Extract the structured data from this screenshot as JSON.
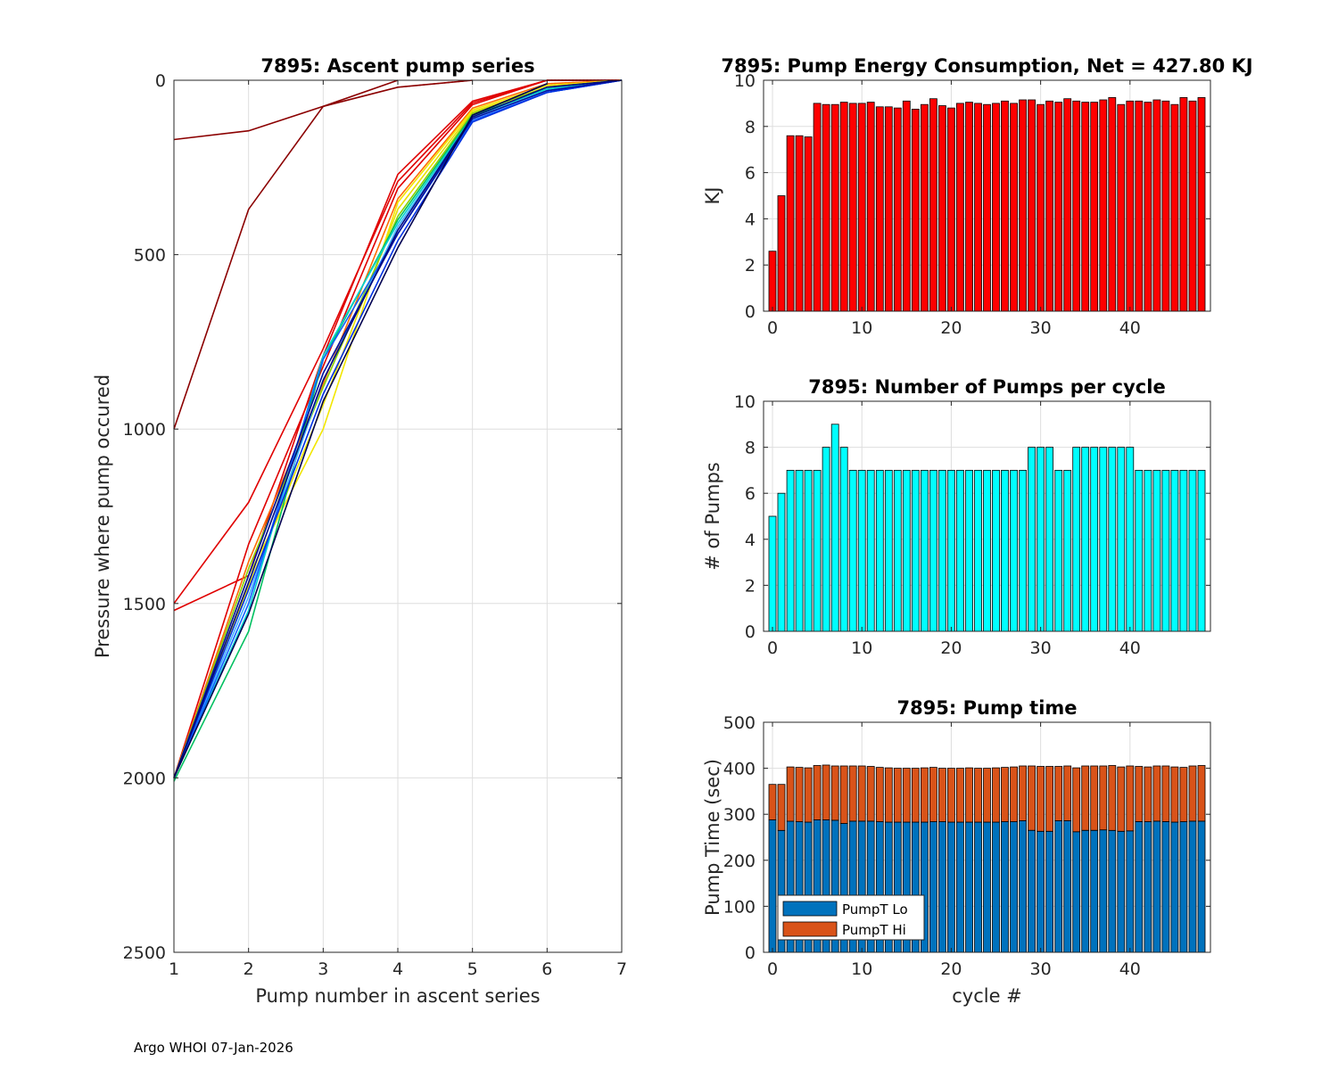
{
  "footer": "Argo WHOI 07-Jan-2026",
  "chart_data": [
    {
      "id": "ascent",
      "type": "line",
      "title": "7895: Ascent pump series",
      "xlabel": "Pump number in ascent series",
      "ylabel": "Pressure where pump occured",
      "xlim": [
        1,
        7
      ],
      "ylim": [
        0,
        2500
      ],
      "y_reversed": true,
      "xticks": [
        1,
        2,
        3,
        4,
        5,
        6,
        7
      ],
      "yticks": [
        0,
        500,
        1000,
        1500,
        2000,
        2500
      ],
      "grid": true,
      "series": [
        {
          "color": "#8b0000",
          "values": [
            [
              1,
              170
            ],
            [
              2,
              145
            ],
            [
              3,
              75
            ],
            [
              4,
              20
            ],
            [
              5,
              0
            ]
          ]
        },
        {
          "color": "#8b0000",
          "values": [
            [
              1,
              1000
            ],
            [
              2,
              370
            ],
            [
              3,
              75
            ],
            [
              4,
              0
            ]
          ]
        },
        {
          "color": "#e00000",
          "values": [
            [
              1,
              1520
            ],
            [
              2,
              1420
            ],
            [
              3,
              790
            ],
            [
              4,
              270
            ],
            [
              5,
              60
            ],
            [
              6,
              0
            ],
            [
              7,
              0
            ]
          ]
        },
        {
          "color": "#e00000",
          "values": [
            [
              1,
              1500
            ],
            [
              2,
              1210
            ],
            [
              3,
              770
            ],
            [
              4,
              290
            ],
            [
              5,
              65
            ],
            [
              6,
              0
            ],
            [
              7,
              0
            ]
          ]
        },
        {
          "color": "#e00000",
          "values": [
            [
              1,
              2000
            ],
            [
              2,
              1330
            ],
            [
              3,
              820
            ],
            [
              4,
              310
            ],
            [
              5,
              70
            ],
            [
              6,
              0
            ],
            [
              7,
              0
            ]
          ]
        },
        {
          "color": "#ff6a00",
          "values": [
            [
              1,
              2000
            ],
            [
              2,
              1380
            ],
            [
              3,
              870
            ],
            [
              4,
              340
            ],
            [
              5,
              80
            ],
            [
              6,
              10
            ],
            [
              7,
              0
            ]
          ]
        },
        {
          "color": "#f2e600",
          "values": [
            [
              1,
              2000
            ],
            [
              2,
              1420
            ],
            [
              3,
              1000
            ],
            [
              4,
              350
            ],
            [
              5,
              85
            ],
            [
              6,
              15
            ],
            [
              7,
              0
            ]
          ]
        },
        {
          "color": "#e8e000",
          "values": [
            [
              1,
              2000
            ],
            [
              2,
              1450
            ],
            [
              3,
              930
            ],
            [
              4,
              370
            ],
            [
              5,
              90
            ],
            [
              6,
              20
            ],
            [
              7,
              0
            ]
          ]
        },
        {
          "color": "#8ad000",
          "values": [
            [
              1,
              2000
            ],
            [
              2,
              1400
            ],
            [
              3,
              880
            ],
            [
              4,
              390
            ],
            [
              5,
              95
            ],
            [
              6,
              20
            ],
            [
              7,
              0
            ]
          ]
        },
        {
          "color": "#00c060",
          "values": [
            [
              1,
              2010
            ],
            [
              2,
              1580
            ],
            [
              3,
              800
            ],
            [
              4,
              400
            ],
            [
              5,
              100
            ],
            [
              6,
              25
            ],
            [
              7,
              0
            ]
          ]
        },
        {
          "color": "#00d0d0",
          "values": [
            [
              1,
              2000
            ],
            [
              2,
              1520
            ],
            [
              3,
              790
            ],
            [
              4,
              410
            ],
            [
              5,
              105
            ],
            [
              6,
              25
            ],
            [
              7,
              0
            ]
          ]
        },
        {
          "color": "#40b0ff",
          "values": [
            [
              1,
              2000
            ],
            [
              2,
              1480
            ],
            [
              3,
              860
            ],
            [
              4,
              420
            ],
            [
              5,
              110
            ],
            [
              6,
              30
            ],
            [
              7,
              0
            ]
          ]
        },
        {
          "color": "#1060ff",
          "values": [
            [
              1,
              2000
            ],
            [
              2,
              1500
            ],
            [
              3,
              800
            ],
            [
              4,
              440
            ],
            [
              5,
              115
            ],
            [
              6,
              35
            ],
            [
              7,
              0
            ]
          ]
        },
        {
          "color": "#0030e0",
          "values": [
            [
              1,
              2000
            ],
            [
              2,
              1460
            ],
            [
              3,
              900
            ],
            [
              4,
              460
            ],
            [
              5,
              120
            ],
            [
              6,
              35
            ],
            [
              7,
              0
            ]
          ]
        },
        {
          "color": "#0010a0",
          "values": [
            [
              1,
              2000
            ],
            [
              2,
              1420
            ],
            [
              3,
              840
            ],
            [
              4,
              440
            ],
            [
              5,
              110
            ],
            [
              6,
              30
            ],
            [
              7,
              0
            ]
          ]
        },
        {
          "color": "#000a80",
          "values": [
            [
              1,
              2000
            ],
            [
              2,
              1440
            ],
            [
              3,
              860
            ],
            [
              4,
              430
            ],
            [
              5,
              105
            ],
            [
              6,
              20
            ],
            [
              7,
              0
            ]
          ]
        },
        {
          "color": "#000050",
          "values": [
            [
              1,
              2000
            ],
            [
              2,
              1530
            ],
            [
              3,
              920
            ],
            [
              4,
              480
            ],
            [
              5,
              100
            ],
            [
              6,
              10
            ]
          ]
        }
      ]
    },
    {
      "id": "energy",
      "type": "bar",
      "title": "7895: Pump Energy Consumption,  Net = 427.80 KJ",
      "xlabel": "",
      "ylabel": "KJ",
      "xlim": [
        -1,
        49
      ],
      "ylim": [
        0,
        10
      ],
      "xticks": [
        0,
        10,
        20,
        30,
        40
      ],
      "yticks": [
        0,
        2,
        4,
        6,
        8,
        10
      ],
      "color": "#ff0000",
      "values": [
        2.6,
        5.0,
        7.6,
        7.6,
        7.55,
        9.0,
        8.95,
        8.95,
        9.05,
        9.0,
        9.0,
        9.05,
        8.85,
        8.85,
        8.8,
        9.1,
        8.75,
        8.95,
        9.2,
        8.9,
        8.8,
        9.0,
        9.05,
        9.0,
        8.95,
        9.0,
        9.1,
        9.0,
        9.15,
        9.15,
        8.95,
        9.1,
        9.05,
        9.2,
        9.1,
        9.05,
        9.05,
        9.15,
        9.25,
        8.95,
        9.1,
        9.1,
        9.05,
        9.15,
        9.1,
        8.95,
        9.25,
        9.1,
        9.25
      ]
    },
    {
      "id": "pumps",
      "type": "bar",
      "title": "7895: Number of Pumps per cycle",
      "xlabel": "",
      "ylabel": "# of Pumps",
      "xlim": [
        -1,
        49
      ],
      "ylim": [
        0,
        10
      ],
      "xticks": [
        0,
        10,
        20,
        30,
        40
      ],
      "yticks": [
        0,
        2,
        4,
        6,
        8,
        10
      ],
      "color": "#00ffff",
      "values": [
        5,
        6,
        7,
        7,
        7,
        7,
        8,
        9,
        8,
        7,
        7,
        7,
        7,
        7,
        7,
        7,
        7,
        7,
        7,
        7,
        7,
        7,
        7,
        7,
        7,
        7,
        7,
        7,
        7,
        8,
        8,
        8,
        7,
        7,
        8,
        8,
        8,
        8,
        8,
        8,
        8,
        7,
        7,
        7,
        7,
        7,
        7,
        7,
        7
      ]
    },
    {
      "id": "pumptime",
      "type": "bar",
      "stacked": true,
      "title": "7895: Pump time",
      "xlabel": "cycle #",
      "ylabel": "Pump Time (sec)",
      "xlim": [
        -1,
        49
      ],
      "ylim": [
        0,
        500
      ],
      "xticks": [
        0,
        10,
        20,
        30,
        40
      ],
      "yticks": [
        0,
        100,
        200,
        300,
        400,
        500
      ],
      "legend": "bottom-left",
      "series": [
        {
          "name": "PumpT Lo",
          "color": "#0072bd",
          "values": [
            288,
            265,
            285,
            284,
            283,
            288,
            288,
            287,
            280,
            285,
            285,
            285,
            284,
            283,
            283,
            283,
            283,
            283,
            284,
            284,
            283,
            283,
            283,
            283,
            283,
            283,
            284,
            284,
            286,
            265,
            263,
            263,
            286,
            286,
            262,
            265,
            265,
            266,
            265,
            263,
            264,
            284,
            284,
            285,
            284,
            283,
            284,
            285,
            285
          ]
        },
        {
          "name": "PumpT Hi",
          "color": "#d95319",
          "values": [
            77,
            100,
            118,
            118,
            118,
            118,
            119,
            118,
            125,
            120,
            120,
            119,
            118,
            118,
            117,
            117,
            117,
            118,
            118,
            116,
            117,
            117,
            118,
            117,
            117,
            118,
            118,
            119,
            119,
            140,
            141,
            141,
            118,
            119,
            139,
            140,
            140,
            139,
            141,
            140,
            141,
            120,
            119,
            120,
            121,
            120,
            118,
            120,
            121
          ]
        }
      ]
    }
  ]
}
